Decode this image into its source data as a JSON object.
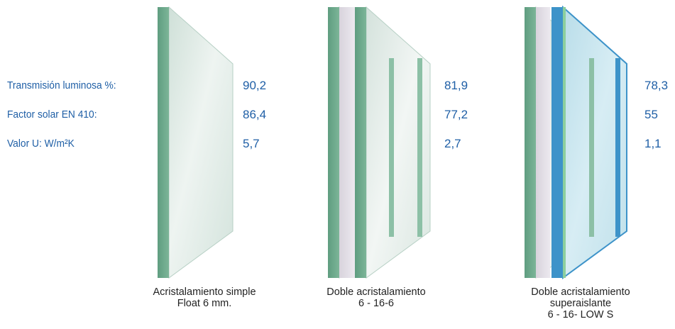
{
  "properties": [
    {
      "label": "Transmisión luminosa %:",
      "values": [
        "90,2",
        "81,9",
        "78,3"
      ]
    },
    {
      "label": "Factor solar EN 410:",
      "values": [
        "86,4",
        "77,2",
        "55"
      ]
    },
    {
      "label": "Valor U: W/m²K",
      "values": [
        "5,7",
        "2,7",
        "1,1"
      ]
    }
  ],
  "products": [
    {
      "caption": [
        "Acristalamiento simple",
        "Float 6 mm."
      ]
    },
    {
      "caption": [
        "Doble acristalamiento",
        "6 - 16-6"
      ]
    },
    {
      "caption": [
        "Doble acristalamiento",
        "superaislante",
        "6 - 16- LOW S"
      ]
    }
  ],
  "colors": {
    "text_blue": "#1f5fa6",
    "glass_edge_green": "#6aa88a",
    "glass_face": "#dde9e4",
    "low_e_blue": "#3d93c9"
  }
}
